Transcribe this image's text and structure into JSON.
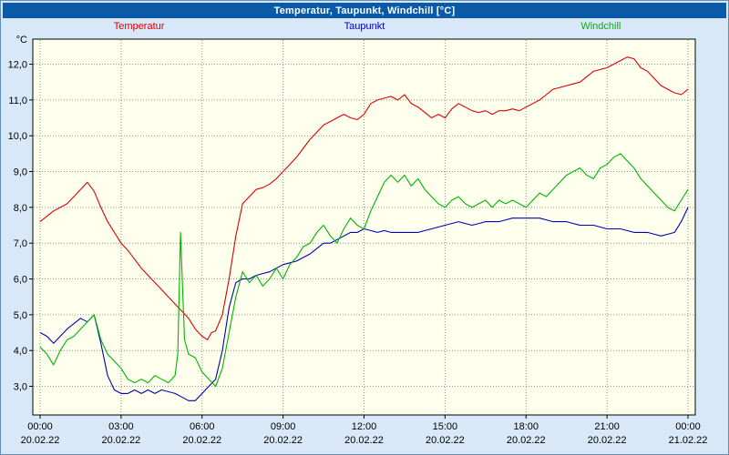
{
  "header": {
    "title": "Temperatur, Taupunkt, Windchill [°C]",
    "bg": "#0a5aa8",
    "fg": "#ffffff"
  },
  "colors": {
    "page_bg": "#d8e8f8",
    "frame_border": "#6090c0"
  },
  "chart_data": {
    "type": "line",
    "title": "Temperatur, Taupunkt, Windchill [°C]",
    "xlabel": "",
    "ylabel": "°C",
    "ylim": [
      2.2,
      12.7
    ],
    "xlim_hours": [
      0,
      24
    ],
    "grid": true,
    "grid_color": "#909090",
    "axis_color": "#000000",
    "plot_bg": "#ffffee",
    "legend_position": "top",
    "yticks": [
      {
        "v": 3.0,
        "label": "3,0"
      },
      {
        "v": 4.0,
        "label": "4,0"
      },
      {
        "v": 5.0,
        "label": "5,0"
      },
      {
        "v": 6.0,
        "label": "6,0"
      },
      {
        "v": 7.0,
        "label": "7,0"
      },
      {
        "v": 8.0,
        "label": "8,0"
      },
      {
        "v": 9.0,
        "label": "9,0"
      },
      {
        "v": 10.0,
        "label": "10,0"
      },
      {
        "v": 11.0,
        "label": "11,0"
      },
      {
        "v": 12.0,
        "label": "12,0"
      }
    ],
    "xticks": [
      {
        "t": 0,
        "label": "00:00",
        "date": "20.02.22"
      },
      {
        "t": 3,
        "label": "03:00",
        "date": "20.02.22"
      },
      {
        "t": 6,
        "label": "06:00",
        "date": "20.02.22"
      },
      {
        "t": 9,
        "label": "09:00",
        "date": "20.02.22"
      },
      {
        "t": 12,
        "label": "12:00",
        "date": "20.02.22"
      },
      {
        "t": 15,
        "label": "15:00",
        "date": "20.02.22"
      },
      {
        "t": 18,
        "label": "18:00",
        "date": "20.02.22"
      },
      {
        "t": 21,
        "label": "21:00",
        "date": "20.02.22"
      },
      {
        "t": 24,
        "label": "00:00",
        "date": "21.02.22"
      }
    ],
    "series": [
      {
        "id": "temperatur",
        "name": "Temperatur",
        "color": "#dd0000",
        "points": [
          [
            0,
            7.6
          ],
          [
            0.25,
            7.75
          ],
          [
            0.5,
            7.9
          ],
          [
            0.75,
            8.0
          ],
          [
            1,
            8.1
          ],
          [
            1.25,
            8.3
          ],
          [
            1.5,
            8.5
          ],
          [
            1.75,
            8.7
          ],
          [
            2,
            8.45
          ],
          [
            2.25,
            8.0
          ],
          [
            2.5,
            7.6
          ],
          [
            2.75,
            7.3
          ],
          [
            3,
            7.0
          ],
          [
            3.25,
            6.8
          ],
          [
            3.5,
            6.55
          ],
          [
            3.75,
            6.3
          ],
          [
            4,
            6.1
          ],
          [
            4.25,
            5.9
          ],
          [
            4.5,
            5.7
          ],
          [
            4.75,
            5.5
          ],
          [
            5,
            5.3
          ],
          [
            5.25,
            5.1
          ],
          [
            5.5,
            4.9
          ],
          [
            5.75,
            4.6
          ],
          [
            6,
            4.4
          ],
          [
            6.2,
            4.3
          ],
          [
            6.35,
            4.5
          ],
          [
            6.5,
            4.55
          ],
          [
            6.75,
            5.0
          ],
          [
            7,
            6.0
          ],
          [
            7.25,
            7.2
          ],
          [
            7.5,
            8.1
          ],
          [
            7.75,
            8.3
          ],
          [
            8,
            8.5
          ],
          [
            8.25,
            8.55
          ],
          [
            8.5,
            8.65
          ],
          [
            8.75,
            8.8
          ],
          [
            9,
            9.0
          ],
          [
            9.25,
            9.2
          ],
          [
            9.5,
            9.4
          ],
          [
            9.75,
            9.65
          ],
          [
            10,
            9.9
          ],
          [
            10.25,
            10.1
          ],
          [
            10.5,
            10.3
          ],
          [
            10.75,
            10.4
          ],
          [
            11,
            10.5
          ],
          [
            11.25,
            10.6
          ],
          [
            11.5,
            10.5
          ],
          [
            11.75,
            10.45
          ],
          [
            12,
            10.6
          ],
          [
            12.25,
            10.9
          ],
          [
            12.5,
            11.0
          ],
          [
            12.75,
            11.05
          ],
          [
            13,
            11.1
          ],
          [
            13.25,
            11.0
          ],
          [
            13.5,
            11.15
          ],
          [
            13.75,
            10.9
          ],
          [
            14,
            10.8
          ],
          [
            14.25,
            10.65
          ],
          [
            14.5,
            10.5
          ],
          [
            14.75,
            10.6
          ],
          [
            15,
            10.5
          ],
          [
            15.25,
            10.75
          ],
          [
            15.5,
            10.9
          ],
          [
            15.75,
            10.8
          ],
          [
            16,
            10.7
          ],
          [
            16.25,
            10.65
          ],
          [
            16.5,
            10.7
          ],
          [
            16.75,
            10.6
          ],
          [
            17,
            10.7
          ],
          [
            17.25,
            10.7
          ],
          [
            17.5,
            10.75
          ],
          [
            17.75,
            10.7
          ],
          [
            18,
            10.8
          ],
          [
            18.25,
            10.9
          ],
          [
            18.5,
            11.0
          ],
          [
            18.75,
            11.15
          ],
          [
            19,
            11.3
          ],
          [
            19.25,
            11.35
          ],
          [
            19.5,
            11.4
          ],
          [
            19.75,
            11.45
          ],
          [
            20,
            11.5
          ],
          [
            20.25,
            11.65
          ],
          [
            20.5,
            11.8
          ],
          [
            20.75,
            11.85
          ],
          [
            21,
            11.9
          ],
          [
            21.25,
            12.0
          ],
          [
            21.5,
            12.1
          ],
          [
            21.75,
            12.2
          ],
          [
            22,
            12.15
          ],
          [
            22.25,
            11.9
          ],
          [
            22.5,
            11.8
          ],
          [
            22.75,
            11.6
          ],
          [
            23,
            11.4
          ],
          [
            23.25,
            11.3
          ],
          [
            23.5,
            11.2
          ],
          [
            23.75,
            11.15
          ],
          [
            24,
            11.3
          ]
        ]
      },
      {
        "id": "taupunkt",
        "name": "Taupunkt",
        "color": "#0000b4",
        "points": [
          [
            0,
            4.5
          ],
          [
            0.25,
            4.4
          ],
          [
            0.5,
            4.2
          ],
          [
            0.75,
            4.4
          ],
          [
            1,
            4.6
          ],
          [
            1.25,
            4.75
          ],
          [
            1.5,
            4.9
          ],
          [
            1.75,
            4.8
          ],
          [
            2,
            5.0
          ],
          [
            2.25,
            4.2
          ],
          [
            2.5,
            3.3
          ],
          [
            2.75,
            2.9
          ],
          [
            3,
            2.8
          ],
          [
            3.25,
            2.8
          ],
          [
            3.5,
            2.9
          ],
          [
            3.75,
            2.8
          ],
          [
            4,
            2.9
          ],
          [
            4.25,
            2.8
          ],
          [
            4.5,
            2.9
          ],
          [
            4.75,
            2.85
          ],
          [
            5,
            2.8
          ],
          [
            5.25,
            2.7
          ],
          [
            5.5,
            2.6
          ],
          [
            5.75,
            2.6
          ],
          [
            6,
            2.8
          ],
          [
            6.25,
            3.0
          ],
          [
            6.5,
            3.2
          ],
          [
            6.75,
            4.0
          ],
          [
            7,
            5.2
          ],
          [
            7.25,
            5.9
          ],
          [
            7.5,
            6.0
          ],
          [
            7.75,
            6.0
          ],
          [
            8,
            6.1
          ],
          [
            8.25,
            6.15
          ],
          [
            8.5,
            6.2
          ],
          [
            8.75,
            6.3
          ],
          [
            9,
            6.4
          ],
          [
            9.25,
            6.45
          ],
          [
            9.5,
            6.5
          ],
          [
            9.75,
            6.6
          ],
          [
            10,
            6.7
          ],
          [
            10.25,
            6.85
          ],
          [
            10.5,
            7.0
          ],
          [
            10.75,
            7.0
          ],
          [
            11,
            7.1
          ],
          [
            11.25,
            7.2
          ],
          [
            11.5,
            7.3
          ],
          [
            11.75,
            7.3
          ],
          [
            12,
            7.4
          ],
          [
            12.25,
            7.35
          ],
          [
            12.5,
            7.3
          ],
          [
            12.75,
            7.35
          ],
          [
            13,
            7.3
          ],
          [
            13.25,
            7.3
          ],
          [
            13.5,
            7.3
          ],
          [
            13.75,
            7.3
          ],
          [
            14,
            7.3
          ],
          [
            14.25,
            7.35
          ],
          [
            14.5,
            7.4
          ],
          [
            14.75,
            7.45
          ],
          [
            15,
            7.5
          ],
          [
            15.25,
            7.55
          ],
          [
            15.5,
            7.6
          ],
          [
            15.75,
            7.55
          ],
          [
            16,
            7.5
          ],
          [
            16.25,
            7.55
          ],
          [
            16.5,
            7.6
          ],
          [
            16.75,
            7.6
          ],
          [
            17,
            7.6
          ],
          [
            17.25,
            7.65
          ],
          [
            17.5,
            7.7
          ],
          [
            17.75,
            7.7
          ],
          [
            18,
            7.7
          ],
          [
            18.25,
            7.7
          ],
          [
            18.5,
            7.7
          ],
          [
            18.75,
            7.65
          ],
          [
            19,
            7.6
          ],
          [
            19.25,
            7.6
          ],
          [
            19.5,
            7.6
          ],
          [
            19.75,
            7.55
          ],
          [
            20,
            7.5
          ],
          [
            20.25,
            7.5
          ],
          [
            20.5,
            7.5
          ],
          [
            20.75,
            7.45
          ],
          [
            21,
            7.4
          ],
          [
            21.25,
            7.4
          ],
          [
            21.5,
            7.4
          ],
          [
            21.75,
            7.35
          ],
          [
            22,
            7.3
          ],
          [
            22.25,
            7.3
          ],
          [
            22.5,
            7.3
          ],
          [
            22.75,
            7.25
          ],
          [
            23,
            7.2
          ],
          [
            23.25,
            7.25
          ],
          [
            23.5,
            7.3
          ],
          [
            23.75,
            7.6
          ],
          [
            24,
            8.0
          ]
        ]
      },
      {
        "id": "windchill",
        "name": "Windchill",
        "color": "#00b400",
        "points": [
          [
            0,
            4.1
          ],
          [
            0.25,
            3.9
          ],
          [
            0.5,
            3.6
          ],
          [
            0.75,
            4.0
          ],
          [
            1,
            4.3
          ],
          [
            1.25,
            4.4
          ],
          [
            1.5,
            4.6
          ],
          [
            1.75,
            4.8
          ],
          [
            2,
            5.0
          ],
          [
            2.25,
            4.3
          ],
          [
            2.5,
            3.9
          ],
          [
            2.75,
            3.7
          ],
          [
            3,
            3.5
          ],
          [
            3.25,
            3.2
          ],
          [
            3.5,
            3.1
          ],
          [
            3.75,
            3.2
          ],
          [
            4,
            3.1
          ],
          [
            4.25,
            3.3
          ],
          [
            4.5,
            3.2
          ],
          [
            4.75,
            3.1
          ],
          [
            5,
            3.3
          ],
          [
            5.1,
            3.9
          ],
          [
            5.2,
            7.3
          ],
          [
            5.35,
            4.3
          ],
          [
            5.5,
            3.9
          ],
          [
            5.75,
            3.8
          ],
          [
            6,
            3.4
          ],
          [
            6.25,
            3.2
          ],
          [
            6.5,
            3.0
          ],
          [
            6.75,
            3.5
          ],
          [
            7,
            4.5
          ],
          [
            7.25,
            5.5
          ],
          [
            7.5,
            6.2
          ],
          [
            7.75,
            5.9
          ],
          [
            8,
            6.1
          ],
          [
            8.25,
            5.8
          ],
          [
            8.5,
            6.0
          ],
          [
            8.75,
            6.3
          ],
          [
            9,
            6.0
          ],
          [
            9.25,
            6.4
          ],
          [
            9.5,
            6.6
          ],
          [
            9.75,
            6.9
          ],
          [
            10,
            7.0
          ],
          [
            10.25,
            7.3
          ],
          [
            10.5,
            7.5
          ],
          [
            10.75,
            7.2
          ],
          [
            11,
            7.0
          ],
          [
            11.25,
            7.4
          ],
          [
            11.5,
            7.7
          ],
          [
            11.75,
            7.5
          ],
          [
            12,
            7.4
          ],
          [
            12.25,
            7.9
          ],
          [
            12.5,
            8.3
          ],
          [
            12.75,
            8.7
          ],
          [
            13,
            8.9
          ],
          [
            13.25,
            8.7
          ],
          [
            13.5,
            8.9
          ],
          [
            13.75,
            8.6
          ],
          [
            14,
            8.8
          ],
          [
            14.25,
            8.5
          ],
          [
            14.5,
            8.3
          ],
          [
            14.75,
            8.1
          ],
          [
            15,
            8.0
          ],
          [
            15.25,
            8.2
          ],
          [
            15.5,
            8.3
          ],
          [
            15.75,
            8.1
          ],
          [
            16,
            8.0
          ],
          [
            16.25,
            8.1
          ],
          [
            16.5,
            8.2
          ],
          [
            16.75,
            8.0
          ],
          [
            17,
            8.2
          ],
          [
            17.25,
            8.1
          ],
          [
            17.5,
            8.2
          ],
          [
            17.75,
            8.1
          ],
          [
            18,
            8.0
          ],
          [
            18.25,
            8.2
          ],
          [
            18.5,
            8.4
          ],
          [
            18.75,
            8.3
          ],
          [
            19,
            8.5
          ],
          [
            19.25,
            8.7
          ],
          [
            19.5,
            8.9
          ],
          [
            19.75,
            9.0
          ],
          [
            20,
            9.1
          ],
          [
            20.25,
            8.9
          ],
          [
            20.5,
            8.8
          ],
          [
            20.75,
            9.1
          ],
          [
            21,
            9.2
          ],
          [
            21.25,
            9.4
          ],
          [
            21.5,
            9.5
          ],
          [
            21.75,
            9.3
          ],
          [
            22,
            9.1
          ],
          [
            22.25,
            8.8
          ],
          [
            22.5,
            8.6
          ],
          [
            22.75,
            8.4
          ],
          [
            23,
            8.2
          ],
          [
            23.25,
            8.0
          ],
          [
            23.5,
            7.9
          ],
          [
            23.75,
            8.2
          ],
          [
            24,
            8.5
          ]
        ]
      }
    ]
  }
}
